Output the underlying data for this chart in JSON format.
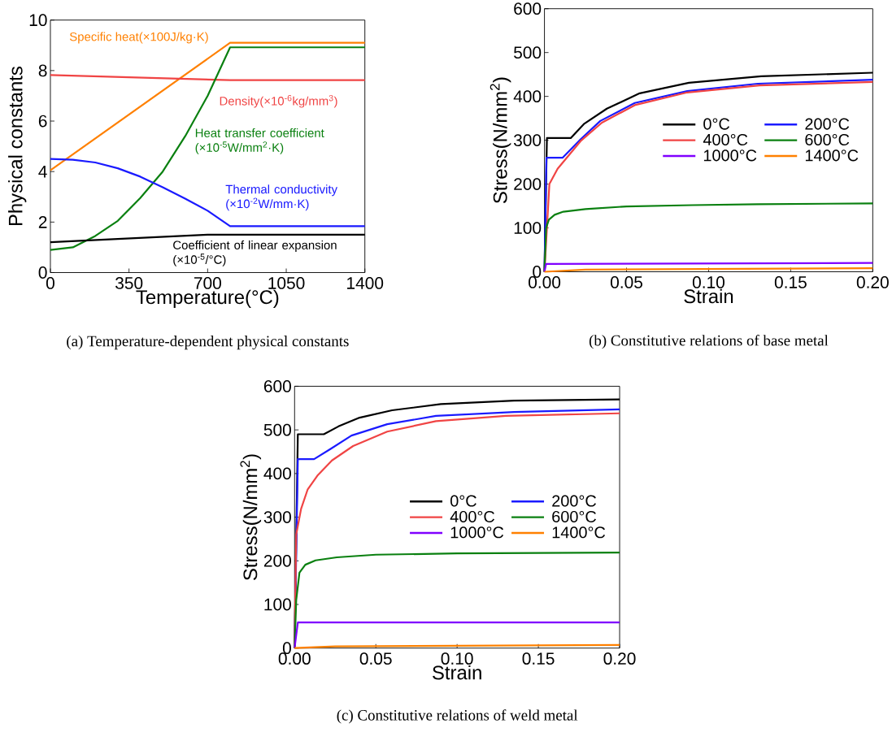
{
  "chart_data": [
    {
      "type": "line",
      "title": "(a) Temperature-dependent physical constants",
      "xlabel": "Temperature(°C)",
      "ylabel": "Physical constants",
      "xlim": [
        0,
        1400
      ],
      "ylim": [
        0,
        10
      ],
      "xticks": [
        0,
        350,
        700,
        1050,
        1400
      ],
      "yticks": [
        0,
        2,
        4,
        6,
        8,
        10
      ],
      "series": [
        {
          "name": "Specific heat(×100J/kg·K)",
          "color": "#ff8000",
          "x": [
            0,
            800,
            1400
          ],
          "values": [
            4.05,
            9.1,
            9.1
          ]
        },
        {
          "name": "Density(×10$^{-6}$kg/mm$^{3}$)",
          "color": "#f04444",
          "x": [
            0,
            800,
            1400
          ],
          "values": [
            7.82,
            7.62,
            7.62
          ]
        },
        {
          "name": "Heat transfer coefficient (×10$^{-5}$W/mm$^{2}$·K)",
          "color": "#0a8010",
          "x": [
            0,
            100,
            200,
            300,
            400,
            500,
            600,
            700,
            800,
            1400
          ],
          "values": [
            0.9,
            1.0,
            1.45,
            2.05,
            2.95,
            4.0,
            5.4,
            7.0,
            8.92,
            8.92
          ]
        },
        {
          "name": "Thermal conductivity (×10$^{-2}$W/mm·K)",
          "color": "#1a1aff",
          "x": [
            0,
            100,
            200,
            300,
            400,
            500,
            600,
            700,
            800,
            1400
          ],
          "values": [
            4.5,
            4.47,
            4.36,
            4.13,
            3.8,
            3.38,
            2.93,
            2.45,
            1.84,
            1.84
          ]
        },
        {
          "name": "Coefficient of linear expansion (×10$^{-5}$/°C)",
          "color": "#000000",
          "x": [
            0,
            300,
            700,
            800,
            1400
          ],
          "values": [
            1.2,
            1.33,
            1.5,
            1.5,
            1.5
          ]
        }
      ]
    },
    {
      "type": "line",
      "title": "(b) Constitutive relations of base metal",
      "xlabel": "Strain",
      "ylabel": "Stress(N/mm$^{2}$)",
      "xlim": [
        0,
        0.2
      ],
      "ylim": [
        0,
        600
      ],
      "xticks": [
        {
          "value": 0,
          "label": "0.00"
        },
        {
          "value": 0.05,
          "label": "0.05"
        },
        {
          "value": 0.1,
          "label": "0.10"
        },
        {
          "value": 0.15,
          "label": "0.15"
        },
        {
          "value": 0.2,
          "label": "0.20"
        }
      ],
      "yticks": [
        0,
        100,
        200,
        300,
        400,
        500,
        600
      ],
      "legend": "right",
      "series": [
        {
          "name": "0°C",
          "color": "#000000",
          "x": [
            0,
            0.0015,
            0.016,
            0.024,
            0.038,
            0.058,
            0.088,
            0.132,
            0.2
          ],
          "values": [
            0,
            305,
            305,
            337,
            372,
            407,
            431,
            446,
            454
          ]
        },
        {
          "name": "200°C",
          "color": "#1a1aff",
          "x": [
            0,
            0.0012,
            0.011,
            0.022,
            0.034,
            0.055,
            0.087,
            0.13,
            0.2
          ],
          "values": [
            0,
            260,
            260,
            302,
            344,
            385,
            412,
            429,
            438
          ]
        },
        {
          "name": "400°C",
          "color": "#f04444",
          "x": [
            0,
            0.003,
            0.008,
            0.022,
            0.035,
            0.055,
            0.087,
            0.131,
            0.2
          ],
          "values": [
            0,
            200,
            235,
            298,
            340,
            380,
            409,
            425,
            433
          ]
        },
        {
          "name": "600°C",
          "color": "#0a8010",
          "x": [
            0,
            0.001,
            0.0027,
            0.0062,
            0.0115,
            0.025,
            0.05,
            0.09,
            0.13,
            0.2
          ],
          "values": [
            0,
            100,
            119,
            130,
            137,
            143,
            149,
            152,
            154,
            156
          ]
        },
        {
          "name": "1000°C",
          "color": "#8000ff",
          "x": [
            0,
            0.001,
            0.2
          ],
          "values": [
            0,
            18,
            20
          ]
        },
        {
          "name": "1400°C",
          "color": "#ff8000",
          "x": [
            0,
            0.025,
            0.2
          ],
          "values": [
            0,
            5,
            8
          ]
        }
      ]
    },
    {
      "type": "line",
      "title": "(c) Constitutive relations of weld metal",
      "xlabel": "Strain",
      "ylabel": "Stress(N/mm$^{2}$)",
      "xlim": [
        0,
        0.2
      ],
      "ylim": [
        0,
        600
      ],
      "xticks": [
        {
          "value": 0,
          "label": "0.00"
        },
        {
          "value": 0.05,
          "label": "0.05"
        },
        {
          "value": 0.1,
          "label": "0.10"
        },
        {
          "value": 0.15,
          "label": "0.15"
        },
        {
          "value": 0.2,
          "label": "0.20"
        }
      ],
      "yticks": [
        0,
        100,
        200,
        300,
        400,
        500,
        600
      ],
      "legend": "right",
      "series": [
        {
          "name": "0°C",
          "color": "#000000",
          "x": [
            0,
            0.002,
            0.018,
            0.027,
            0.04,
            0.06,
            0.09,
            0.135,
            0.2
          ],
          "values": [
            0,
            490,
            490,
            508,
            528,
            545,
            559,
            567,
            570
          ]
        },
        {
          "name": "200°C",
          "color": "#1a1aff",
          "x": [
            0,
            0.002,
            0.012,
            0.022,
            0.035,
            0.057,
            0.087,
            0.135,
            0.2
          ],
          "values": [
            0,
            433,
            433,
            456,
            487,
            513,
            532,
            541,
            547
          ]
        },
        {
          "name": "400°C",
          "color": "#f04444",
          "x": [
            0,
            0.001,
            0.004,
            0.008,
            0.014,
            0.023,
            0.036,
            0.057,
            0.087,
            0.13,
            0.2
          ],
          "values": [
            0,
            260,
            319,
            363,
            395,
            430,
            463,
            496,
            520,
            532,
            538
          ]
        },
        {
          "name": "600°C",
          "color": "#0a8010",
          "x": [
            0,
            0.001,
            0.003,
            0.0066,
            0.0129,
            0.026,
            0.05,
            0.1,
            0.2
          ],
          "values": [
            0,
            110,
            173,
            191,
            201,
            208,
            214,
            217,
            219
          ]
        },
        {
          "name": "1000°C",
          "color": "#8000ff",
          "x": [
            0,
            0.002,
            0.2
          ],
          "values": [
            0,
            59,
            59
          ]
        },
        {
          "name": "1400°C",
          "color": "#ff8000",
          "x": [
            0,
            0.025,
            0.2
          ],
          "values": [
            0,
            4,
            7
          ]
        }
      ]
    }
  ]
}
